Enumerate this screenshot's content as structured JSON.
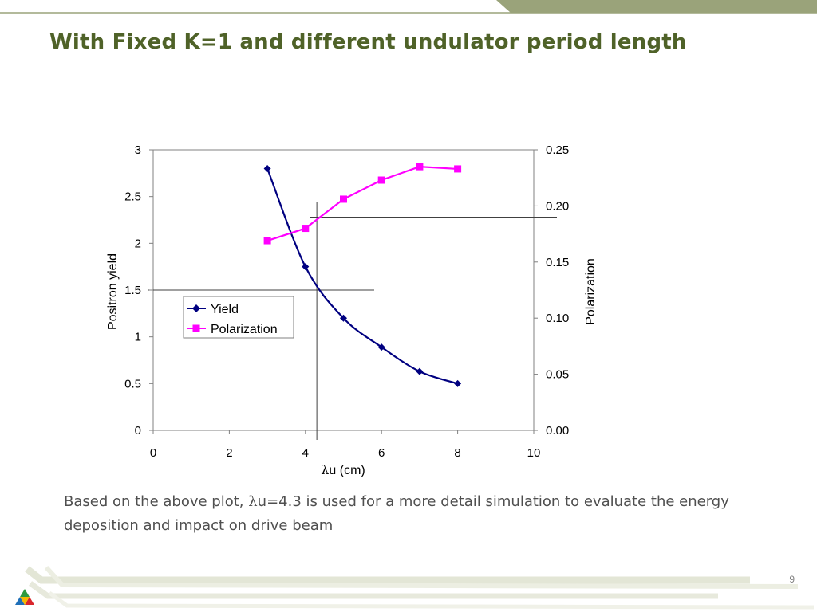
{
  "slide": {
    "title": "With Fixed K=1 and different undulator period length",
    "caption_before": "Based on the above plot, ",
    "caption_symbol": "λ",
    "caption_after": "u=4.3 is used for a more detail simulation to evaluate the energy deposition and impact on drive beam",
    "page_number": "9",
    "colors": {
      "title": "#4f6228",
      "band": "#9aa37a",
      "caption": "#4f4f4f"
    }
  },
  "chart_data": {
    "type": "line",
    "xlabel_symbol": "λ",
    "xlabel": "u (cm)",
    "ylabel": "Positron yield",
    "y2label": "Polarization",
    "xlim": [
      0,
      10
    ],
    "ylim": [
      0,
      3
    ],
    "y2lim": [
      0,
      0.25
    ],
    "x_ticks": [
      "0",
      "2",
      "4",
      "6",
      "8",
      "10"
    ],
    "y_ticks": [
      "0",
      "0.5",
      "1",
      "1.5",
      "2",
      "2.5",
      "3"
    ],
    "y2_ticks": [
      "0.00",
      "0.05",
      "0.10",
      "0.15",
      "0.20",
      "0.25"
    ],
    "legend_position": "center-left",
    "series": [
      {
        "name": "Yield",
        "axis": "left",
        "color": "#000080",
        "marker": "diamond",
        "x": [
          3,
          4,
          5,
          6,
          7,
          8
        ],
        "values": [
          2.8,
          1.75,
          1.2,
          0.89,
          0.63,
          0.5
        ]
      },
      {
        "name": "Polarization",
        "axis": "right",
        "color": "#ff00ff",
        "marker": "square",
        "x": [
          3,
          4,
          5,
          6,
          7,
          8
        ],
        "values": [
          0.169,
          0.18,
          0.206,
          0.223,
          0.235,
          0.233
        ]
      }
    ],
    "reference_lines": [
      {
        "type": "vertical",
        "x": 4.3
      },
      {
        "type": "horizontal",
        "axis": "left",
        "y": 1.5
      },
      {
        "type": "horizontal",
        "axis": "right",
        "y": 0.19
      }
    ]
  }
}
